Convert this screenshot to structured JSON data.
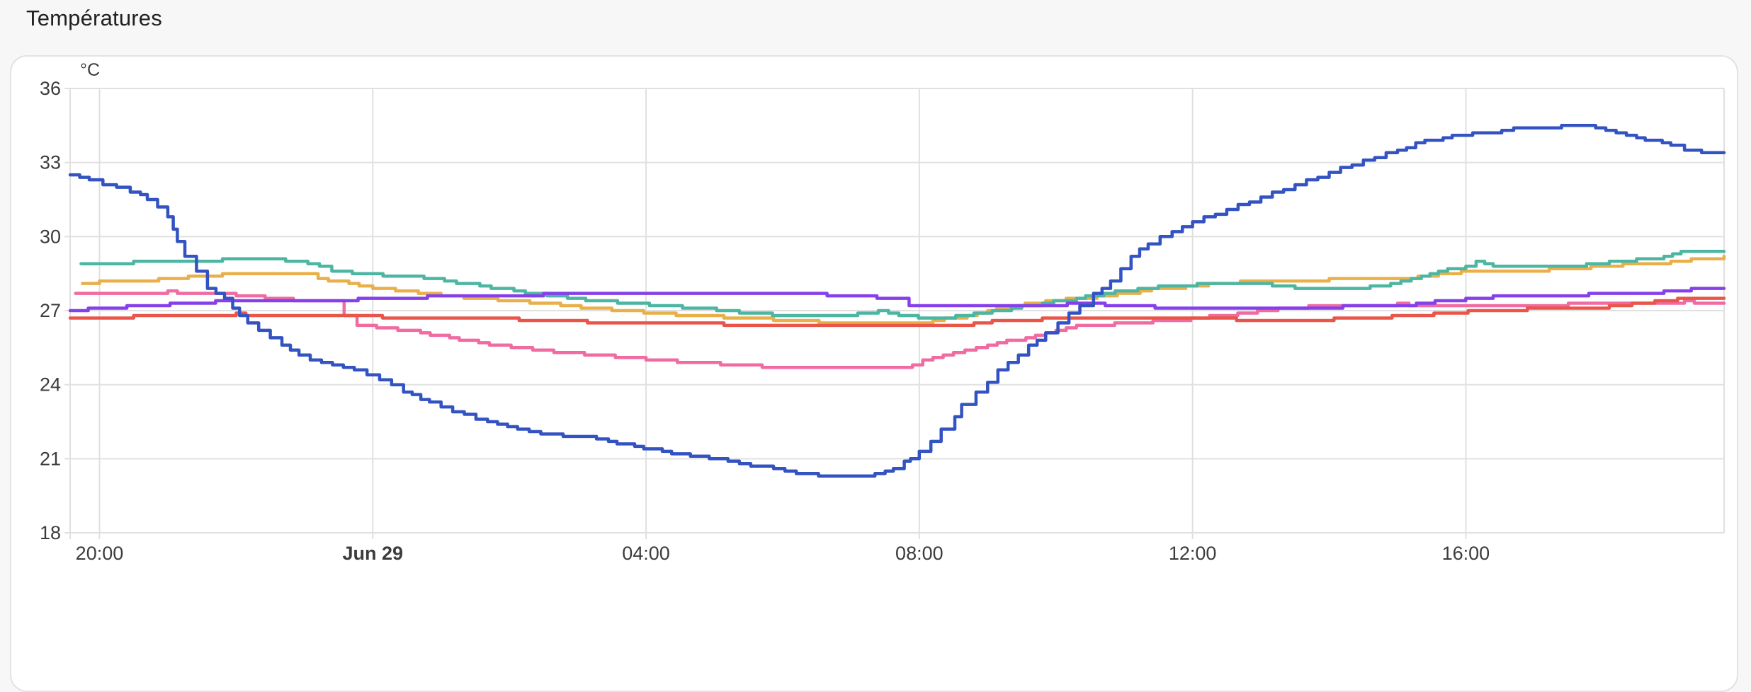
{
  "page": {
    "title": "Températures",
    "background": "#f7f7f7",
    "title_color": "#212121"
  },
  "card": {
    "background": "#ffffff",
    "border_color": "#e3e3e3"
  },
  "chart_data": {
    "type": "line",
    "title": "Températures",
    "unit": "°C",
    "legend": "none",
    "grid_color": "#e0e0e0",
    "tick_label_color": "#3c3c3c",
    "y_axis": {
      "min": 18,
      "max": 36,
      "tick_step": 3,
      "ticks": [
        36,
        33,
        30,
        27,
        24,
        21,
        18
      ],
      "unit_label": "°C"
    },
    "x_axis": {
      "start_hour": -4.43,
      "end_hour": 19.78,
      "ticks": [
        {
          "label": "20:00",
          "hour": -4,
          "bold": false
        },
        {
          "label": "Jun 29",
          "hour": 0,
          "bold": true
        },
        {
          "label": "04:00",
          "hour": 4,
          "bold": false
        },
        {
          "label": "08:00",
          "hour": 8,
          "bold": false
        },
        {
          "label": "12:00",
          "hour": 12,
          "bold": false
        },
        {
          "label": "16:00",
          "hour": 16,
          "bold": false
        }
      ]
    },
    "series": [
      {
        "name": "pink",
        "color": "#f06ba1",
        "points": [
          [
            -4.35,
            27.65
          ],
          [
            -3.6,
            27.7
          ],
          [
            -3.0,
            27.75
          ],
          [
            -2.3,
            27.7
          ],
          [
            -1.85,
            27.6
          ],
          [
            -1.3,
            27.45
          ],
          [
            -0.75,
            27.35
          ],
          [
            -0.45,
            27.35
          ],
          [
            -0.42,
            26.8
          ],
          [
            -0.23,
            26.4
          ],
          [
            0.2,
            26.3
          ],
          [
            0.7,
            26.1
          ],
          [
            1.55,
            25.7
          ],
          [
            2.5,
            25.35
          ],
          [
            3.7,
            25.1
          ],
          [
            4.3,
            24.95
          ],
          [
            5.25,
            24.8
          ],
          [
            6.0,
            24.7
          ],
          [
            7.75,
            24.7
          ],
          [
            8.05,
            24.95
          ],
          [
            8.5,
            25.25
          ],
          [
            9.0,
            25.6
          ],
          [
            9.7,
            26.0
          ],
          [
            10.3,
            26.35
          ],
          [
            11.0,
            26.5
          ],
          [
            11.7,
            26.6
          ],
          [
            12.25,
            26.75
          ],
          [
            12.8,
            26.9
          ],
          [
            13.25,
            27.1
          ],
          [
            14.0,
            27.2
          ],
          [
            15.0,
            27.25
          ],
          [
            15.5,
            27.15
          ],
          [
            16.5,
            27.2
          ],
          [
            17.5,
            27.25
          ],
          [
            18.5,
            27.3
          ],
          [
            19.2,
            27.35
          ],
          [
            19.78,
            27.3
          ]
        ]
      },
      {
        "name": "orange",
        "color": "#e9b049",
        "points": [
          [
            -4.25,
            28.1
          ],
          [
            -4.0,
            28.15
          ],
          [
            -3.4,
            28.2
          ],
          [
            -3.0,
            28.3
          ],
          [
            -2.4,
            28.4
          ],
          [
            -2.2,
            28.45
          ],
          [
            -1.2,
            28.5
          ],
          [
            -1.0,
            28.45
          ],
          [
            -0.8,
            28.3
          ],
          [
            -0.5,
            28.15
          ],
          [
            -0.2,
            28.0
          ],
          [
            0.0,
            27.9
          ],
          [
            0.5,
            27.75
          ],
          [
            1.0,
            27.6
          ],
          [
            1.5,
            27.5
          ],
          [
            2.0,
            27.4
          ],
          [
            2.6,
            27.25
          ],
          [
            3.2,
            27.1
          ],
          [
            3.8,
            26.95
          ],
          [
            4.3,
            26.85
          ],
          [
            5.0,
            26.75
          ],
          [
            5.7,
            26.65
          ],
          [
            6.2,
            26.6
          ],
          [
            6.7,
            26.5
          ],
          [
            7.0,
            26.45
          ],
          [
            7.9,
            26.45
          ],
          [
            8.2,
            26.6
          ],
          [
            8.7,
            26.8
          ],
          [
            9.0,
            27.0
          ],
          [
            9.4,
            27.2
          ],
          [
            9.85,
            27.35
          ],
          [
            10.3,
            27.5
          ],
          [
            10.9,
            27.65
          ],
          [
            11.4,
            27.85
          ],
          [
            11.9,
            27.95
          ],
          [
            12.4,
            28.1
          ],
          [
            13.0,
            28.2
          ],
          [
            14.0,
            28.25
          ],
          [
            15.0,
            28.3
          ],
          [
            15.6,
            28.45
          ],
          [
            16.1,
            28.6
          ],
          [
            16.8,
            28.6
          ],
          [
            17.5,
            28.7
          ],
          [
            18.0,
            28.8
          ],
          [
            18.6,
            28.9
          ],
          [
            19.0,
            28.95
          ],
          [
            19.3,
            29.1
          ],
          [
            19.78,
            29.15
          ]
        ]
      },
      {
        "name": "teal",
        "color": "#4db6a2",
        "points": [
          [
            -4.27,
            28.9
          ],
          [
            -3.5,
            28.95
          ],
          [
            -2.8,
            29.0
          ],
          [
            -2.2,
            29.05
          ],
          [
            -1.6,
            29.1
          ],
          [
            -0.95,
            28.9
          ],
          [
            -0.78,
            28.75
          ],
          [
            -0.6,
            28.6
          ],
          [
            0.0,
            28.45
          ],
          [
            0.6,
            28.4
          ],
          [
            1.05,
            28.2
          ],
          [
            1.4,
            28.05
          ],
          [
            1.9,
            27.85
          ],
          [
            2.4,
            27.65
          ],
          [
            2.85,
            27.5
          ],
          [
            3.25,
            27.4
          ],
          [
            3.75,
            27.3
          ],
          [
            4.2,
            27.2
          ],
          [
            4.7,
            27.1
          ],
          [
            5.2,
            26.95
          ],
          [
            5.7,
            26.85
          ],
          [
            6.3,
            26.8
          ],
          [
            7.1,
            26.85
          ],
          [
            7.4,
            26.95
          ],
          [
            7.85,
            26.75
          ],
          [
            8.4,
            26.7
          ],
          [
            8.8,
            26.85
          ],
          [
            9.2,
            27.0
          ],
          [
            9.8,
            27.3
          ],
          [
            10.3,
            27.5
          ],
          [
            10.7,
            27.7
          ],
          [
            11.2,
            27.9
          ],
          [
            11.8,
            28.0
          ],
          [
            12.2,
            28.1
          ],
          [
            13.0,
            28.05
          ],
          [
            13.5,
            27.9
          ],
          [
            14.3,
            27.85
          ],
          [
            15.05,
            28.15
          ],
          [
            15.35,
            28.4
          ],
          [
            15.6,
            28.6
          ],
          [
            16.0,
            28.75
          ],
          [
            16.15,
            29.0
          ],
          [
            16.4,
            28.8
          ],
          [
            17.0,
            28.75
          ],
          [
            17.6,
            28.8
          ],
          [
            18.1,
            28.95
          ],
          [
            18.5,
            29.05
          ],
          [
            18.9,
            29.15
          ],
          [
            19.15,
            29.35
          ],
          [
            19.78,
            29.4
          ]
        ]
      },
      {
        "name": "red",
        "color": "#e95649",
        "points": [
          [
            -4.43,
            26.7
          ],
          [
            -3.5,
            26.75
          ],
          [
            -3.1,
            26.8
          ],
          [
            -2.0,
            26.85
          ],
          [
            -1.0,
            26.8
          ],
          [
            0.0,
            26.75
          ],
          [
            1.0,
            26.7
          ],
          [
            2.0,
            26.65
          ],
          [
            3.0,
            26.55
          ],
          [
            4.0,
            26.5
          ],
          [
            5.0,
            26.45
          ],
          [
            5.7,
            26.4
          ],
          [
            6.2,
            26.35
          ],
          [
            8.5,
            26.35
          ],
          [
            8.8,
            26.5
          ],
          [
            9.2,
            26.6
          ],
          [
            9.8,
            26.65
          ],
          [
            10.5,
            26.7
          ],
          [
            11.5,
            26.7
          ],
          [
            12.5,
            26.65
          ],
          [
            13.5,
            26.6
          ],
          [
            14.5,
            26.7
          ],
          [
            15.2,
            26.8
          ],
          [
            15.7,
            26.9
          ],
          [
            16.2,
            27.0
          ],
          [
            16.9,
            27.05
          ],
          [
            17.5,
            27.1
          ],
          [
            18.1,
            27.15
          ],
          [
            18.6,
            27.3
          ],
          [
            19.1,
            27.5
          ],
          [
            19.78,
            27.5
          ]
        ]
      },
      {
        "name": "purple",
        "color": "#8640ea",
        "points": [
          [
            -4.43,
            27.0
          ],
          [
            -3.9,
            27.1
          ],
          [
            -3.3,
            27.2
          ],
          [
            -2.8,
            27.3
          ],
          [
            -2.3,
            27.35
          ],
          [
            -1.0,
            27.35
          ],
          [
            0.1,
            27.5
          ],
          [
            0.8,
            27.55
          ],
          [
            1.5,
            27.6
          ],
          [
            2.5,
            27.65
          ],
          [
            6.5,
            27.65
          ],
          [
            7.1,
            27.6
          ],
          [
            7.8,
            27.45
          ],
          [
            7.85,
            27.15
          ],
          [
            9.9,
            27.2
          ],
          [
            10.3,
            27.3
          ],
          [
            11.0,
            27.2
          ],
          [
            11.6,
            27.1
          ],
          [
            12.2,
            27.05
          ],
          [
            13.2,
            27.1
          ],
          [
            14.2,
            27.15
          ],
          [
            15.0,
            27.2
          ],
          [
            15.55,
            27.35
          ],
          [
            16.0,
            27.45
          ],
          [
            16.4,
            27.55
          ],
          [
            17.2,
            27.6
          ],
          [
            17.8,
            27.65
          ],
          [
            18.4,
            27.7
          ],
          [
            18.9,
            27.75
          ],
          [
            19.3,
            27.85
          ],
          [
            19.78,
            27.85
          ]
        ]
      },
      {
        "name": "blue",
        "color": "#3353c2",
        "points": [
          [
            -4.43,
            32.45
          ],
          [
            -4.15,
            32.25
          ],
          [
            -3.95,
            32.1
          ],
          [
            -3.75,
            31.95
          ],
          [
            -3.55,
            31.8
          ],
          [
            -3.4,
            31.65
          ],
          [
            -3.3,
            31.5
          ],
          [
            -3.15,
            31.2
          ],
          [
            -3.0,
            30.8
          ],
          [
            -2.92,
            30.3
          ],
          [
            -2.86,
            29.8
          ],
          [
            -2.75,
            29.2
          ],
          [
            -2.58,
            28.55
          ],
          [
            -2.42,
            27.9
          ],
          [
            -2.17,
            27.5
          ],
          [
            -2.05,
            27.1
          ],
          [
            -1.95,
            26.75
          ],
          [
            -1.83,
            26.5
          ],
          [
            -1.67,
            26.2
          ],
          [
            -1.5,
            25.9
          ],
          [
            -1.33,
            25.6
          ],
          [
            -1.08,
            25.2
          ],
          [
            -0.75,
            24.9
          ],
          [
            -0.27,
            24.6
          ],
          [
            0.1,
            24.2
          ],
          [
            0.45,
            23.7
          ],
          [
            0.83,
            23.3
          ],
          [
            1.17,
            22.9
          ],
          [
            1.68,
            22.5
          ],
          [
            2.12,
            22.2
          ],
          [
            2.63,
            21.95
          ],
          [
            3.1,
            21.85
          ],
          [
            3.45,
            21.7
          ],
          [
            3.7,
            21.55
          ],
          [
            4.1,
            21.35
          ],
          [
            4.65,
            21.1
          ],
          [
            5.2,
            20.9
          ],
          [
            5.7,
            20.65
          ],
          [
            6.2,
            20.4
          ],
          [
            6.85,
            20.25
          ],
          [
            7.15,
            20.3
          ],
          [
            7.35,
            20.4
          ],
          [
            7.5,
            20.5
          ],
          [
            7.62,
            20.6
          ],
          [
            7.78,
            20.85
          ],
          [
            7.87,
            21.0
          ],
          [
            8.0,
            21.3
          ],
          [
            8.17,
            21.65
          ],
          [
            8.32,
            22.2
          ],
          [
            8.52,
            22.7
          ],
          [
            8.62,
            23.2
          ],
          [
            8.83,
            23.65
          ],
          [
            9.0,
            24.05
          ],
          [
            9.15,
            24.6
          ],
          [
            9.45,
            25.2
          ],
          [
            9.6,
            25.55
          ],
          [
            9.85,
            26.1
          ],
          [
            10.03,
            26.5
          ],
          [
            10.35,
            27.2
          ],
          [
            10.55,
            27.65
          ],
          [
            10.8,
            28.2
          ],
          [
            10.95,
            28.7
          ],
          [
            11.1,
            29.2
          ],
          [
            11.35,
            29.7
          ],
          [
            11.7,
            30.2
          ],
          [
            12.0,
            30.6
          ],
          [
            12.5,
            31.1
          ],
          [
            13.0,
            31.6
          ],
          [
            13.5,
            32.1
          ],
          [
            14.0,
            32.6
          ],
          [
            14.5,
            33.1
          ],
          [
            15.0,
            33.5
          ],
          [
            15.4,
            33.9
          ],
          [
            15.8,
            34.05
          ],
          [
            16.1,
            34.2
          ],
          [
            16.35,
            34.15
          ],
          [
            16.7,
            34.35
          ],
          [
            17.1,
            34.4
          ],
          [
            17.55,
            34.5
          ],
          [
            17.9,
            34.4
          ],
          [
            18.2,
            34.2
          ],
          [
            18.5,
            34.0
          ],
          [
            18.75,
            33.85
          ],
          [
            19.0,
            33.7
          ],
          [
            19.2,
            33.5
          ],
          [
            19.45,
            33.4
          ],
          [
            19.78,
            33.35
          ]
        ]
      }
    ]
  }
}
